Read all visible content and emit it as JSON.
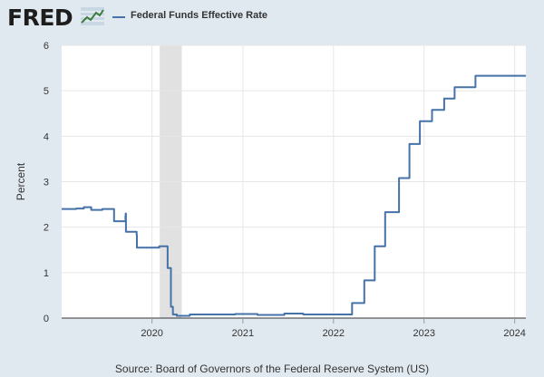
{
  "logo": {
    "text": "FRED",
    "icon": "trend-graph-icon"
  },
  "colors": {
    "background": "#e1e9f0",
    "plot_background": "#ffffff",
    "series": "#4572a7",
    "recession": "#e1e1e1",
    "gridline": "#e6e6e6"
  },
  "source": "Source: Board of Governors of the Federal Reserve System (US)",
  "chart_data": {
    "type": "line",
    "title": "",
    "xlabel": "",
    "ylabel": "Percent",
    "xlim": [
      "2019-01-02",
      "2024-02-15"
    ],
    "ylim": [
      0,
      6
    ],
    "y_ticks": [
      0,
      1,
      2,
      3,
      4,
      5,
      6
    ],
    "x_ticks": [
      {
        "label": "2020",
        "date": "2020-01-01"
      },
      {
        "label": "2021",
        "date": "2021-01-01"
      },
      {
        "label": "2022",
        "date": "2022-01-01"
      },
      {
        "label": "2023",
        "date": "2023-01-01"
      },
      {
        "label": "2024",
        "date": "2024-01-01"
      }
    ],
    "grid": true,
    "legend_position": "top-left",
    "recessions": [
      {
        "start": "2020-02-01",
        "end": "2020-04-30"
      }
    ],
    "series": [
      {
        "name": "Federal Funds Effective Rate",
        "color": "#4572a7",
        "step": true,
        "points": [
          [
            "2019-01-02",
            2.4
          ],
          [
            "2019-03-01",
            2.41
          ],
          [
            "2019-04-01",
            2.44
          ],
          [
            "2019-05-01",
            2.38
          ],
          [
            "2019-06-15",
            2.4
          ],
          [
            "2019-08-01",
            2.13
          ],
          [
            "2019-09-16",
            2.25
          ],
          [
            "2019-09-17",
            2.3
          ],
          [
            "2019-09-18",
            1.9
          ],
          [
            "2019-10-31",
            1.83
          ],
          [
            "2019-11-01",
            1.55
          ],
          [
            "2020-01-30",
            1.58
          ],
          [
            "2020-03-04",
            1.1
          ],
          [
            "2020-03-17",
            0.25
          ],
          [
            "2020-03-25",
            0.08
          ],
          [
            "2020-04-10",
            0.05
          ],
          [
            "2020-06-01",
            0.08
          ],
          [
            "2020-12-01",
            0.09
          ],
          [
            "2021-03-01",
            0.07
          ],
          [
            "2021-06-17",
            0.1
          ],
          [
            "2021-09-01",
            0.08
          ],
          [
            "2022-03-17",
            0.33
          ],
          [
            "2022-05-05",
            0.83
          ],
          [
            "2022-06-16",
            1.58
          ],
          [
            "2022-07-28",
            2.33
          ],
          [
            "2022-09-22",
            3.08
          ],
          [
            "2022-11-03",
            3.83
          ],
          [
            "2022-12-15",
            4.33
          ],
          [
            "2023-02-02",
            4.58
          ],
          [
            "2023-03-23",
            4.83
          ],
          [
            "2023-05-04",
            5.08
          ],
          [
            "2023-07-27",
            5.33
          ],
          [
            "2024-02-15",
            5.33
          ]
        ]
      }
    ]
  }
}
